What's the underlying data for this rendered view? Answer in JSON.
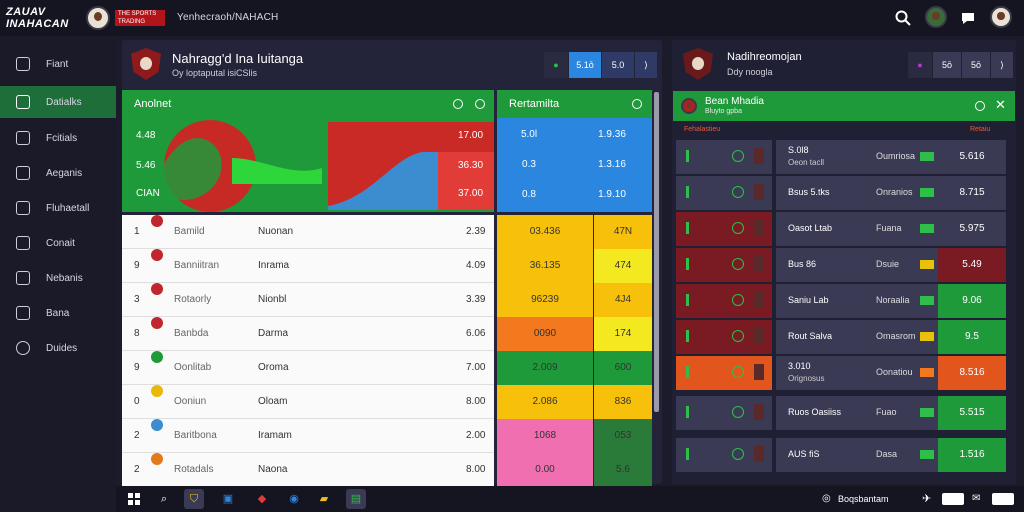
{
  "app": {
    "logo_line1": "ZAUAV",
    "logo_line2": "INAHACAN",
    "brand_badge": "THE SPORTS TRADING BOARD",
    "title": "Yenhecraoh/NAHACH"
  },
  "top_icons": [
    "search-icon",
    "avatar",
    "chat-icon",
    "avatar"
  ],
  "sidebar": {
    "items": [
      {
        "label": "Fiant",
        "icon": "grid-icon"
      },
      {
        "label": "Datialks",
        "icon": "home-icon"
      },
      {
        "label": "Fcitials",
        "icon": "document-icon"
      },
      {
        "label": "Aeganis",
        "icon": "list-icon"
      },
      {
        "label": "Fluhaetall",
        "icon": "trophy-icon"
      },
      {
        "label": "Conait",
        "icon": "phone-icon"
      },
      {
        "label": "Nebanis",
        "icon": "calendar-icon"
      },
      {
        "label": "Bana",
        "icon": "book-icon"
      },
      {
        "label": "Duides",
        "icon": "chat-icon"
      }
    ],
    "active_index": 1
  },
  "main_panel": {
    "title": "Nahragg'd Ina Iuitanga",
    "subtitle": "Oy loptaputal isiCSlis",
    "pills": [
      "",
      "5.1ō",
      "5.0",
      "⟩"
    ],
    "left_header": "Anolnet",
    "right_header": "Rertamilta",
    "chart_values_left": [
      "4.48",
      "5.46",
      "CIAN"
    ],
    "chart_values_right": [
      "17.00",
      "36.30",
      "37.00"
    ],
    "blue_cells": [
      [
        "5.0l",
        "1.9.36"
      ],
      [
        "0.3",
        "1.3.16"
      ],
      [
        "0.8",
        "1.9.10"
      ]
    ],
    "rows": [
      {
        "num": "1",
        "name": "Bamild",
        "team": "Nuonan",
        "val": "2.39",
        "c1": "03.436",
        "c2": "47N",
        "color": "#c0262c",
        "c1bg": "#f7c10b",
        "c2bg": "#f7c10b"
      },
      {
        "num": "9",
        "name": "Banniitran",
        "team": "Inrama",
        "val": "4.09",
        "c1": "36.135",
        "c2": "474",
        "color": "#c0262c",
        "c1bg": "#f7c10b",
        "c2bg": "#f4e820"
      },
      {
        "num": "3",
        "name": "Rotaorly",
        "team": "Nionbl",
        "val": "3.39",
        "c1": "96239",
        "c2": "4J4",
        "color": "#c0262c",
        "c1bg": "#f7c10b",
        "c2bg": "#f7c10b"
      },
      {
        "num": "8",
        "name": "Banbda",
        "team": "Darma",
        "val": "6.06",
        "c1": "0090",
        "c2": "174",
        "color": "#c0262c",
        "c1bg": "#f3781e",
        "c2bg": "#f4e820"
      },
      {
        "num": "9",
        "name": "Oonlitab",
        "team": "Oroma",
        "val": "7.00",
        "c1": "2.009",
        "c2": "600",
        "color": "#1f9a3b",
        "c1bg": "#1f9a3b",
        "c2bg": "#1f9a3b"
      },
      {
        "num": "0",
        "name": "Ooniun",
        "team": "Oloam",
        "val": "8.00",
        "c1": "2.086",
        "c2": "836",
        "color": "#e8b80a",
        "c1bg": "#f7c10b",
        "c2bg": "#f7c10b"
      },
      {
        "num": "2",
        "name": "Baritbona",
        "team": "Iramam",
        "val": "2.00",
        "c1": "1068",
        "c2": "053",
        "color": "#3b8dd0",
        "c1bg": "#f06fb0",
        "c2bg": "#2a7a3a"
      },
      {
        "num": "2",
        "name": "Rotadals",
        "team": "Naona",
        "val": "8.00",
        "c1": "0.00",
        "c2": "5.6",
        "color": "#e27a1a",
        "c1bg": "#f06fb0",
        "c2bg": "#2a7a3a"
      }
    ]
  },
  "side_panel": {
    "title": "Nadihreomojan",
    "subtitle": "Ddy noogla",
    "pills": [
      "",
      "5ō",
      "5ō",
      "⟩"
    ],
    "header_title": "Bean Mhadia",
    "header_sub": "Bluyto gpba",
    "col_left": "Fehalastieu",
    "col_right": "Retaiu",
    "rows": [
      {
        "label": "S.0l8",
        "sub": "Oeon tacll",
        "team": "Oumriosa",
        "val": "5.616",
        "bar": "#2dbf4a",
        "bg": "#3a3a55",
        "lblbg": "#3a3a55",
        "vbg": "#3a3a55"
      },
      {
        "label": "Bsus 5.tks",
        "sub": "",
        "team": "Onranios",
        "val": "8.715",
        "bar": "#2dbf4a",
        "bg": "#3a3a55",
        "lblbg": "#3a3a55",
        "vbg": "#3a3a55"
      },
      {
        "label": "Oasot Ltab",
        "sub": "",
        "team": "Fuana",
        "val": "5.975",
        "bar": "#2dbf4a",
        "bg": "#3a3a55",
        "lblbg": "#7a1a22",
        "vbg": "#3a3a55"
      },
      {
        "label": "Bus 86",
        "sub": "",
        "team": "Dsuie",
        "val": "5.49",
        "bar": "#e8c20a",
        "bg": "#3a3a55",
        "lblbg": "#7a1a22",
        "vbg": "#7a1a22"
      },
      {
        "label": "Saniu Lab",
        "sub": "",
        "team": "Noraalia",
        "val": "9.06",
        "bar": "#2dbf4a",
        "bg": "#3a3a55",
        "lblbg": "#7a1a22",
        "vbg": "#1f9a3b"
      },
      {
        "label": "Rout Salva",
        "sub": "",
        "team": "Omasrom",
        "val": "9.5",
        "bar": "#e8c20a",
        "bg": "#3a3a55",
        "lblbg": "#7a1a22",
        "vbg": "#1f9a3b"
      },
      {
        "label": "3.010",
        "sub": "Orignosus",
        "team": "Oonatiou",
        "val": "8.516",
        "bar": "#f3781e",
        "bg": "#3a3a55",
        "lblbg": "#e2561e",
        "vbg": "#e2561e"
      },
      {
        "label": "Ruos Oasiiss",
        "sub": "",
        "team": "Fuao",
        "val": "5.515",
        "bar": "#2dbf4a",
        "bg": "#3a3a55",
        "lblbg": "#3a3a55",
        "vbg": "#1f9a3b"
      },
      {
        "label": "AUS fiS",
        "sub": "",
        "team": "Dasa",
        "val": "1.516",
        "bar": "#2dbf4a",
        "bg": "#3a3a55",
        "lblbg": "#3a3a55",
        "vbg": "#1f9a3b"
      }
    ]
  },
  "taskbar": {
    "status_label": "Boqsbantam",
    "icons": [
      "windows-icon",
      "search-icon",
      "shield-icon",
      "store-icon",
      "game-icon",
      "browser-icon",
      "folder-icon",
      "app-icon"
    ]
  },
  "colors": {
    "accent_green": "#1f9a3b",
    "accent_red": "#b3141c",
    "panel": "#23233a"
  }
}
